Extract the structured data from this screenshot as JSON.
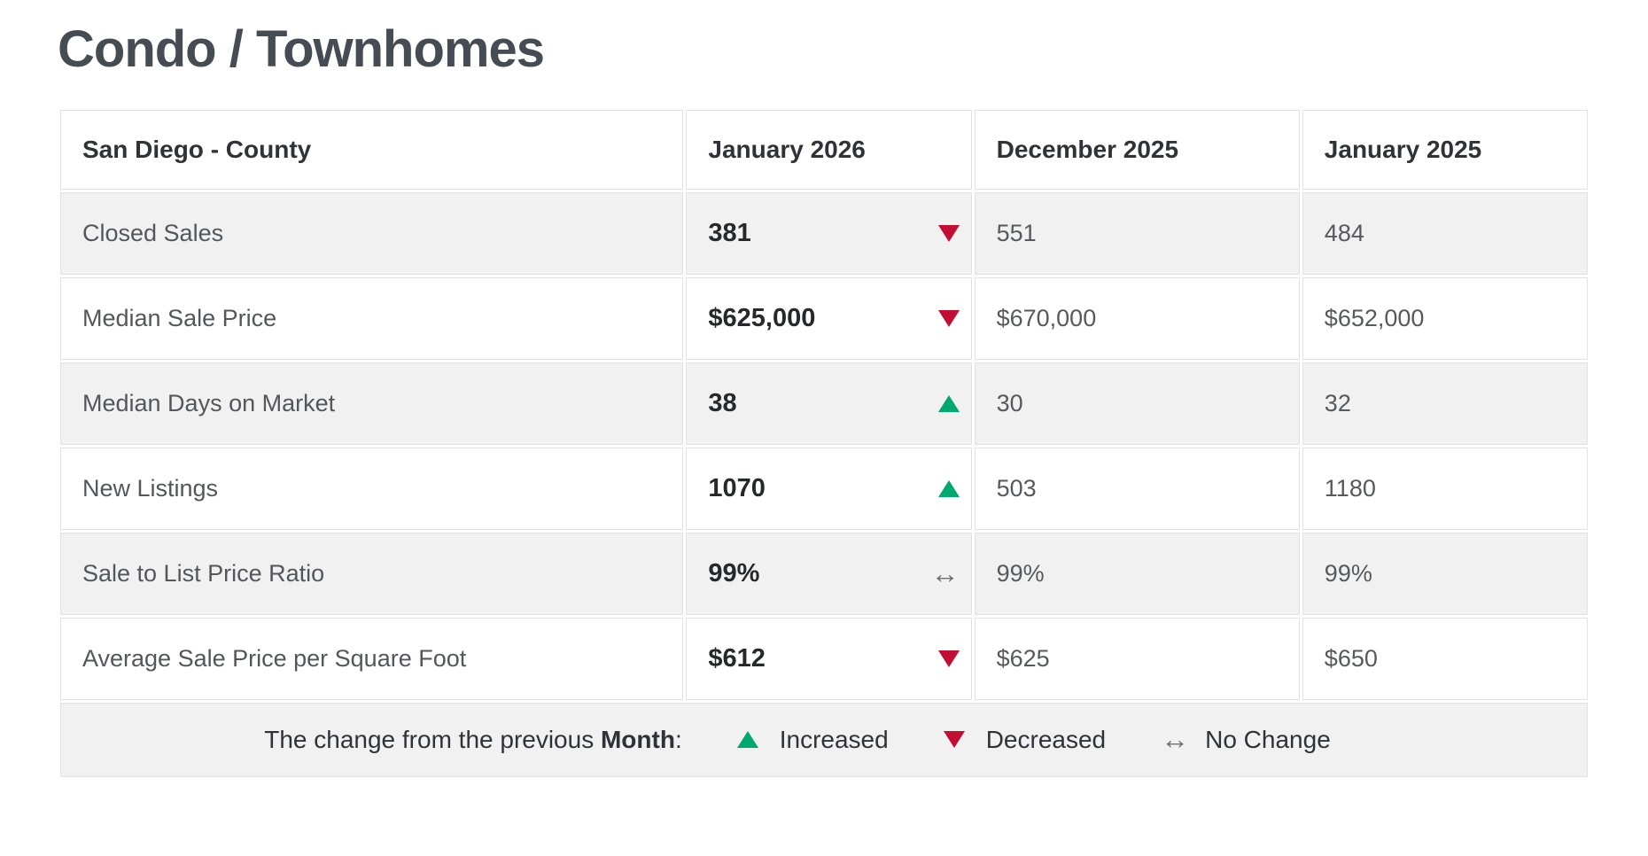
{
  "page_title": "Condo / Townhomes",
  "colors": {
    "increase": "#00a96e",
    "decrease": "#c30e33",
    "no_change": "#6d7277"
  },
  "table": {
    "columns": {
      "metric": "San Diego - County",
      "current": "January 2026",
      "prev_month": "December 2025",
      "prev_year": "January 2025"
    },
    "rows": [
      {
        "label": "Closed Sales",
        "current": "381",
        "change": "down",
        "prev_month": "551",
        "prev_year": "484"
      },
      {
        "label": "Median Sale Price",
        "current": "$625,000",
        "change": "down",
        "prev_month": "$670,000",
        "prev_year": "$652,000"
      },
      {
        "label": "Median Days on Market",
        "current": "38",
        "change": "up",
        "prev_month": "30",
        "prev_year": "32"
      },
      {
        "label": "New Listings",
        "current": "1070",
        "change": "up",
        "prev_month": "503",
        "prev_year": "1180"
      },
      {
        "label": "Sale to List Price Ratio",
        "current": "99%",
        "change": "no-change",
        "prev_month": "99%",
        "prev_year": "99%"
      },
      {
        "label": "Average Sale Price per Square Foot",
        "current": "$612",
        "change": "down",
        "prev_month": "$625",
        "prev_year": "$650"
      }
    ],
    "legend": {
      "prefix": "The change from the previous ",
      "bold_word": "Month",
      "suffix": ":",
      "items": [
        {
          "icon": "up",
          "label": "Increased"
        },
        {
          "icon": "down",
          "label": "Decreased"
        },
        {
          "icon": "no-change",
          "label": "No Change"
        }
      ]
    }
  }
}
